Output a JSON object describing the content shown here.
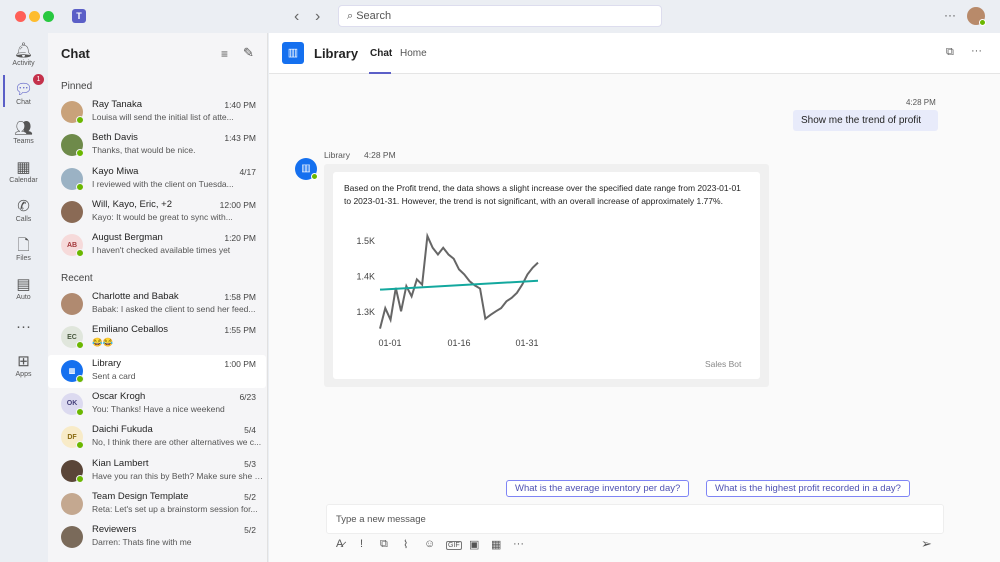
{
  "titlebar": {
    "search_placeholder": "Search",
    "back_icon": "chevron-left-icon",
    "forward_icon": "chevron-right-icon",
    "more": "···"
  },
  "rail": {
    "items": [
      {
        "label": "Activity",
        "icon": "bell-icon"
      },
      {
        "label": "Chat",
        "icon": "chat-icon",
        "badge": "1"
      },
      {
        "label": "Teams",
        "icon": "teams-icon"
      },
      {
        "label": "Calendar",
        "icon": "calendar-icon"
      },
      {
        "label": "Calls",
        "icon": "phone-icon"
      },
      {
        "label": "Files",
        "icon": "file-icon"
      },
      {
        "label": "Auto",
        "icon": "auto-icon"
      },
      {
        "label": "",
        "icon": "more-icon"
      },
      {
        "label": "Apps",
        "icon": "apps-icon"
      }
    ]
  },
  "chatlist": {
    "title": "Chat",
    "pinned_label": "Pinned",
    "recent_label": "Recent",
    "pinned": [
      {
        "name": "Ray Tanaka",
        "time": "1:40 PM",
        "preview": "Louisa will send the initial list of atte...",
        "color": "#c9a27a"
      },
      {
        "name": "Beth Davis",
        "time": "1:43 PM",
        "preview": "Thanks, that would be nice.",
        "color": "#6e8a4a"
      },
      {
        "name": "Kayo Miwa",
        "time": "4/17",
        "preview": "I reviewed with the client on Tuesda...",
        "color": "#9bb2c4"
      },
      {
        "name": "Will, Kayo, Eric, +2",
        "time": "12:00 PM",
        "preview": "Kayo: It would be great to sync with...",
        "color": "#8a6a55"
      },
      {
        "name": "August Bergman",
        "time": "1:20 PM",
        "preview": "I haven't checked available times yet",
        "initials": "AB",
        "color": "#f6dada",
        "fg": "#a4373a"
      }
    ],
    "recent": [
      {
        "name": "Charlotte and Babak",
        "time": "1:58 PM",
        "preview": "Babak: I asked the client to send her feed...",
        "color": "#b08a70"
      },
      {
        "name": "Emiliano Ceballos",
        "time": "1:55 PM",
        "preview": "😂😂",
        "initials": "EC",
        "color": "#e0e6dc",
        "fg": "#4a5a40"
      },
      {
        "name": "Library",
        "time": "1:00 PM",
        "preview": "Sent a card",
        "color": "#1570ef",
        "selected": true
      },
      {
        "name": "Oscar Krogh",
        "time": "6/23",
        "preview": "You: Thanks! Have a nice weekend",
        "initials": "OK",
        "color": "#dcdaf0",
        "fg": "#45407a"
      },
      {
        "name": "Daichi Fukuda",
        "time": "5/4",
        "preview": "No, I think there are other alternatives we c...",
        "initials": "DF",
        "color": "#f8ebc8",
        "fg": "#8a6a10"
      },
      {
        "name": "Kian Lambert",
        "time": "5/3",
        "preview": "Have you ran this by Beth? Make sure she is...",
        "color": "#5a4538"
      },
      {
        "name": "Team Design Template",
        "time": "5/2",
        "preview": "Reta: Let's set up a brainstorm session for...",
        "color": "#c4a890"
      },
      {
        "name": "Reviewers",
        "time": "5/2",
        "preview": "Darren: Thats fine with me",
        "color": "#7a6a5a"
      }
    ]
  },
  "header": {
    "title": "Library",
    "tabs": [
      "Chat",
      "Home"
    ],
    "active_tab": "Chat"
  },
  "messages": {
    "user": {
      "time": "4:28 PM",
      "text": "Show me the trend of profit"
    },
    "bot": {
      "sender": "Library",
      "time": "4:28 PM",
      "text": "Based on the Profit trend, the data shows a slight increase over the specified date range from 2023-01-01 to 2023-01-31. However, the trend is not significant, with an overall increase of approximately 1.77%.",
      "footer": "Sales Bot"
    }
  },
  "suggestions": [
    "What is the average inventory per day?",
    "What is the highest profit recorded in a day?"
  ],
  "compose": {
    "placeholder": "Type a new message"
  },
  "colors": {
    "accent": "#5b5fc7",
    "trend": "#13a89e",
    "series": "#666666"
  },
  "chart_data": {
    "type": "line",
    "title": "",
    "xlabel": "",
    "ylabel": "",
    "x_tick_labels": [
      "01-01",
      "01-16",
      "01-31"
    ],
    "y_tick_labels": [
      "1.5K",
      "1.4K",
      "1.3K"
    ],
    "y_ticks": [
      1500,
      1400,
      1300
    ],
    "x": [
      "01-01",
      "01-02",
      "01-03",
      "01-04",
      "01-05",
      "01-06",
      "01-07",
      "01-08",
      "01-09",
      "01-10",
      "01-11",
      "01-12",
      "01-13",
      "01-14",
      "01-15",
      "01-16",
      "01-17",
      "01-18",
      "01-19",
      "01-20",
      "01-21",
      "01-22",
      "01-23",
      "01-24",
      "01-25",
      "01-26",
      "01-27",
      "01-28",
      "01-29",
      "01-30",
      "01-31"
    ],
    "series": [
      {
        "values": [
          1253,
          1311,
          1278,
          1368,
          1302,
          1373,
          1344,
          1392,
          1377,
          1514,
          1481,
          1462,
          1481,
          1462,
          1450,
          1420,
          1406,
          1387,
          1375,
          1366,
          1281,
          1292,
          1302,
          1311,
          1330,
          1340,
          1354,
          1377,
          1406,
          1425,
          1439
        ]
      }
    ],
    "trendline": [
      1363,
      1388
    ],
    "grid": false
  }
}
